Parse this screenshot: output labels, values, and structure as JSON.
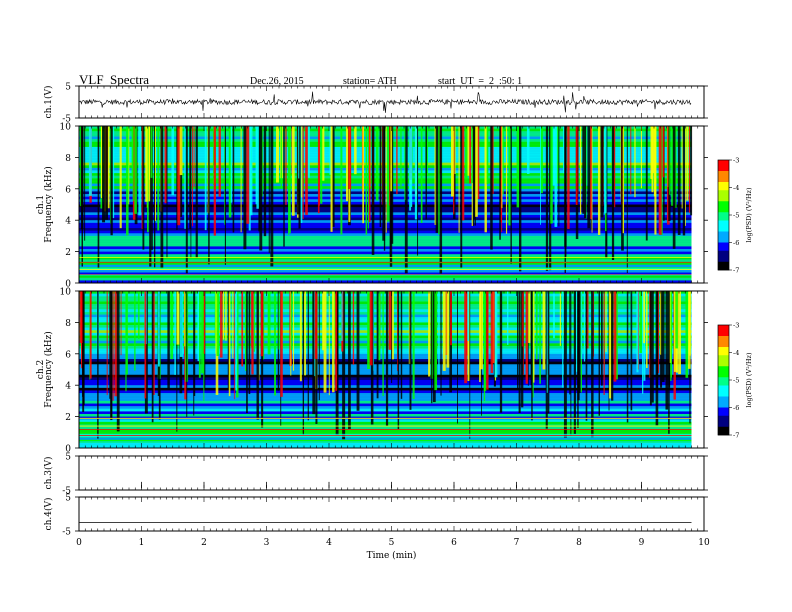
{
  "header": {
    "title": "VLF  Spectra",
    "date": "Dec.26, 2015",
    "station": "station= ATH",
    "start": "start  UT  =  2  :50: 1"
  },
  "chart_data": [
    {
      "type": "line",
      "panel": "ch1-waveform",
      "ylabel": "ch.1(V)",
      "ylim": [
        -5,
        5
      ],
      "yticks": [
        "5",
        "-5"
      ],
      "xlim": [
        0,
        10
      ],
      "baseline": 0,
      "color": "#000000"
    },
    {
      "type": "heatmap",
      "panel": "ch1-spectrogram",
      "ylabel_channel": "ch.1",
      "ylabel": "Frequency  (kHz)",
      "ylim": [
        0,
        10
      ],
      "yticks": [
        "0",
        "2",
        "4",
        "6",
        "8",
        "10"
      ],
      "xlim": [
        0,
        10
      ],
      "data_end_min": 9.8,
      "colorbar": {
        "label": "log(PSD) (V²/Hz)",
        "range": [
          -7,
          -3
        ],
        "ticks": [
          "-3",
          "-4",
          "-5",
          "-6",
          "-7"
        ]
      }
    },
    {
      "type": "heatmap",
      "panel": "ch2-spectrogram",
      "ylabel_channel": "ch.2",
      "ylabel": "Frequency  (kHz)",
      "ylim": [
        0,
        10
      ],
      "yticks": [
        "0",
        "2",
        "4",
        "6",
        "8",
        "10"
      ],
      "xlim": [
        0,
        10
      ],
      "data_end_min": 9.8,
      "colorbar": {
        "label": "log(PSD) (V²/Hz)",
        "range": [
          -7,
          -3
        ],
        "ticks": [
          "-3",
          "-4",
          "-5",
          "-6",
          "-7"
        ]
      }
    },
    {
      "type": "line",
      "panel": "ch3-waveform",
      "ylabel": "ch.3(V)",
      "ylim": [
        -5,
        5
      ],
      "yticks": [
        "5",
        "-5"
      ],
      "xlim": [
        0,
        10
      ],
      "baseline": 5
    },
    {
      "type": "line",
      "panel": "ch4-waveform",
      "ylabel": "ch.4(V)",
      "ylim": [
        -5,
        5
      ],
      "yticks": [
        "5",
        "-5"
      ],
      "xlim": [
        0,
        10
      ],
      "baseline": -2.5
    }
  ],
  "x_axis": {
    "label": "Time  (min)",
    "ticks": [
      "0",
      "1",
      "2",
      "3",
      "4",
      "5",
      "6",
      "7",
      "8",
      "9",
      "10"
    ]
  },
  "colors": {
    "palette": [
      "#000000",
      "#000080",
      "#0000ff",
      "#00aaff",
      "#00ffff",
      "#00ff88",
      "#00ff00",
      "#aaff00",
      "#ffff00",
      "#ff8800",
      "#ff0000",
      "#ffffff"
    ]
  }
}
